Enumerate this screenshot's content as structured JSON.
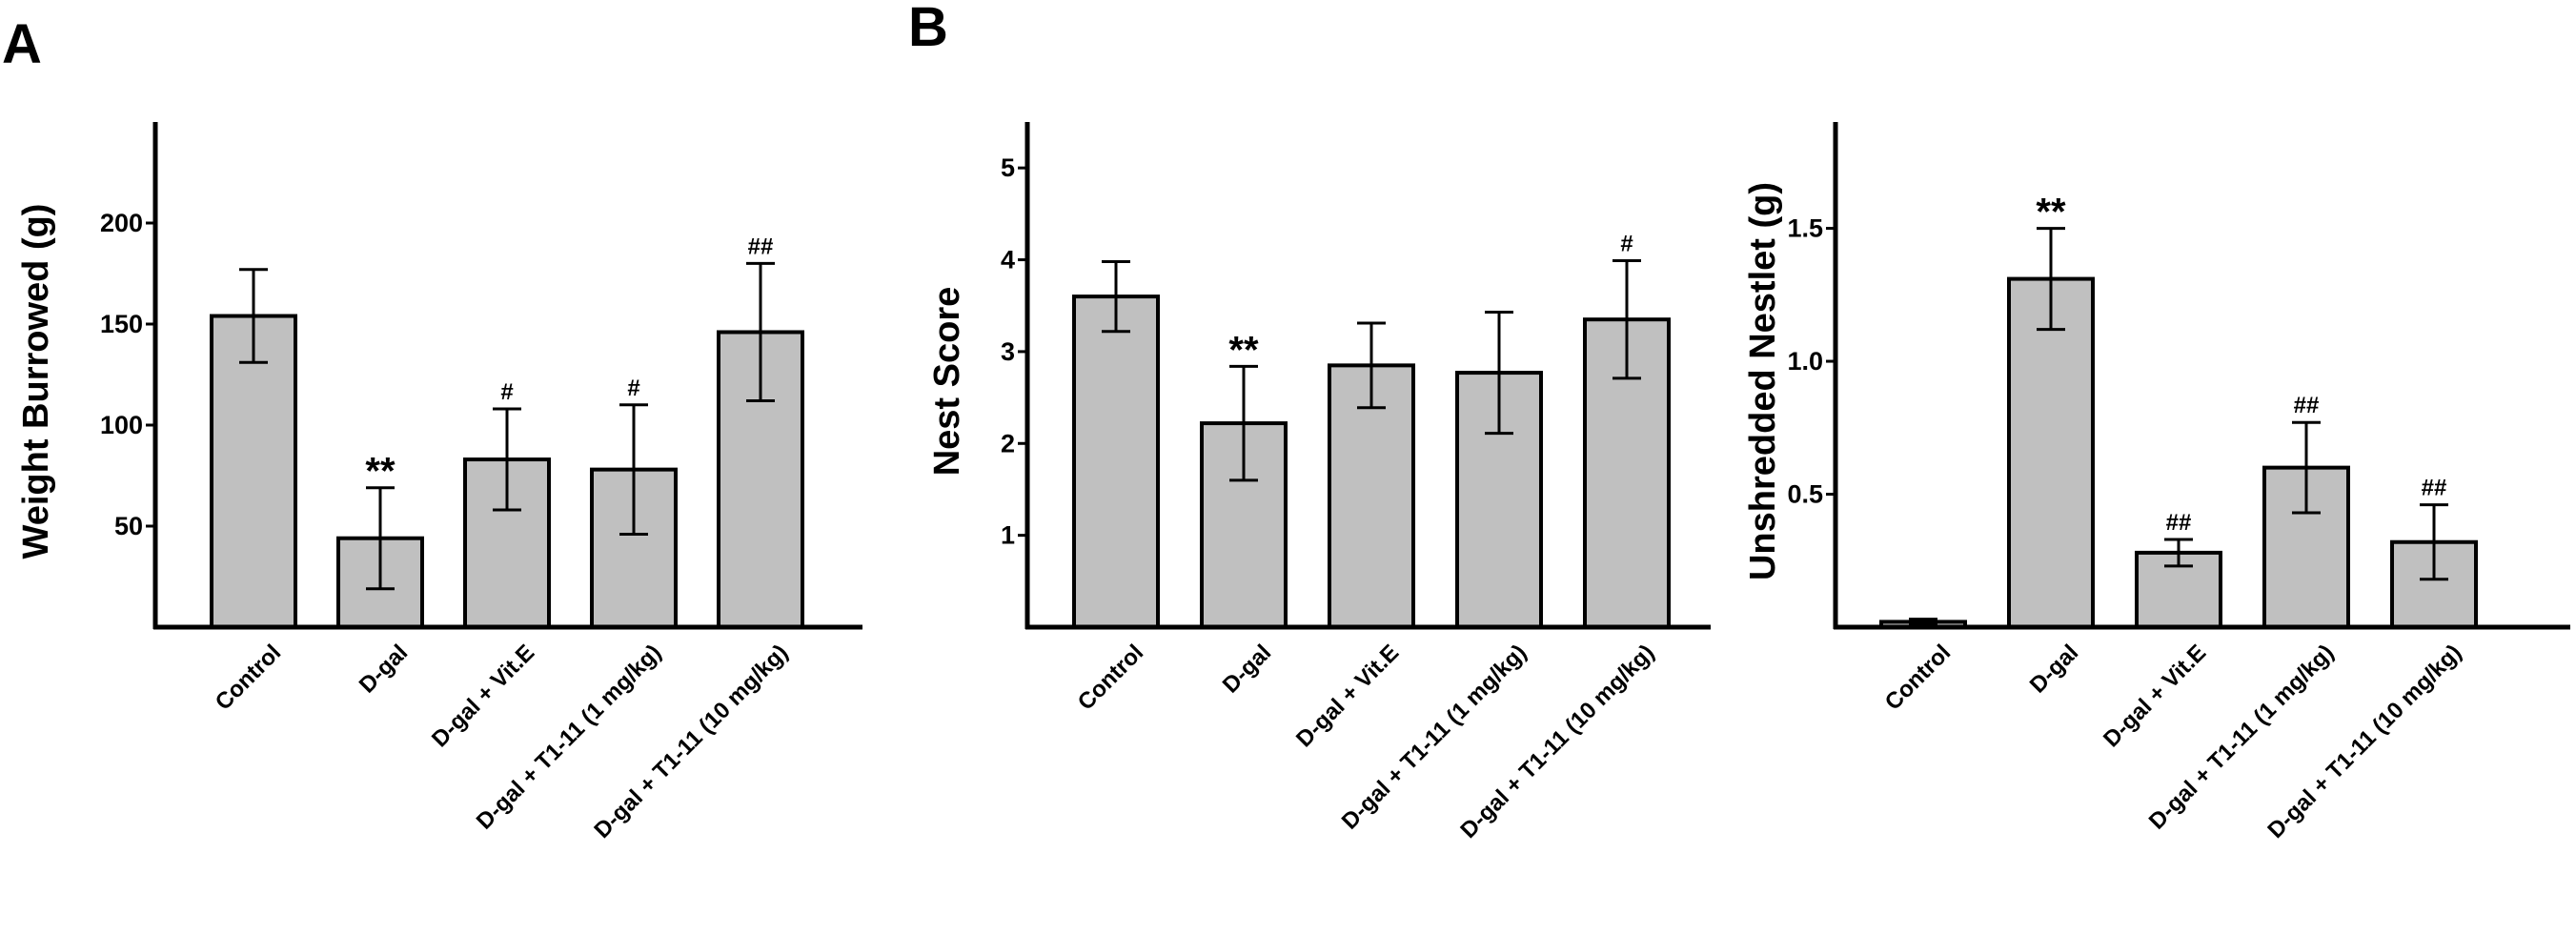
{
  "figure": {
    "panel_labels": [
      "A",
      "B"
    ]
  },
  "colors": {
    "bar_fill": "#c0c0c0",
    "stroke": "#000000",
    "background": "#ffffff"
  },
  "chart_data": [
    {
      "type": "bar",
      "panel": "A",
      "title": "",
      "xlabel": "",
      "ylabel": "Weight Burrowed (g)",
      "categories": [
        "Control",
        "D-gal",
        "D-gal + Vit.E",
        "D-gal + T1-11 (1 mg/kg)",
        "D-gal + T1-11 (10 mg/kg)"
      ],
      "values": [
        154,
        44,
        83,
        78,
        146
      ],
      "errors": [
        23,
        25,
        25,
        32,
        34
      ],
      "annotations": [
        "",
        "**",
        "#",
        "#",
        "##"
      ],
      "yticks": [
        50,
        100,
        150,
        200
      ],
      "ytick_labels": [
        "50",
        "100",
        "150",
        "200"
      ],
      "ylim": [
        0,
        250
      ],
      "grid": false,
      "legend": "none"
    },
    {
      "type": "bar",
      "panel": "B",
      "title": "",
      "xlabel": "",
      "ylabel": "Nest Score",
      "categories": [
        "Control",
        "D-gal",
        "D-gal + Vit.E",
        "D-gal + T1-11 (1 mg/kg)",
        "D-gal + T1-11 (10 mg/kg)"
      ],
      "values": [
        3.6,
        2.22,
        2.85,
        2.77,
        3.35
      ],
      "errors": [
        0.38,
        0.62,
        0.46,
        0.66,
        0.64
      ],
      "annotations": [
        "",
        "**",
        "",
        "",
        "#"
      ],
      "yticks": [
        1,
        2,
        3,
        4,
        5
      ],
      "ytick_labels": [
        "1",
        "2",
        "3",
        "4",
        "5"
      ],
      "ylim": [
        0,
        5.5
      ],
      "grid": false,
      "legend": "none"
    },
    {
      "type": "bar",
      "panel": "",
      "title": "",
      "xlabel": "",
      "ylabel": "Unshredded Nestlet (g)",
      "categories": [
        "Control",
        "D-gal",
        "D-gal + Vit.E",
        "D-gal + T1-11 (1 mg/kg)",
        "D-gal + T1-11 (10 mg/kg)"
      ],
      "values": [
        0.02,
        1.31,
        0.28,
        0.6,
        0.32
      ],
      "errors": [
        0.01,
        0.19,
        0.05,
        0.17,
        0.14
      ],
      "annotations": [
        "",
        "**",
        "##",
        "##",
        "##"
      ],
      "yticks": [
        0.5,
        1.0,
        1.5
      ],
      "ytick_labels": [
        "0.5",
        "1.0",
        "1.5"
      ],
      "ylim": [
        0,
        1.9
      ],
      "grid": false,
      "legend": "none"
    }
  ]
}
